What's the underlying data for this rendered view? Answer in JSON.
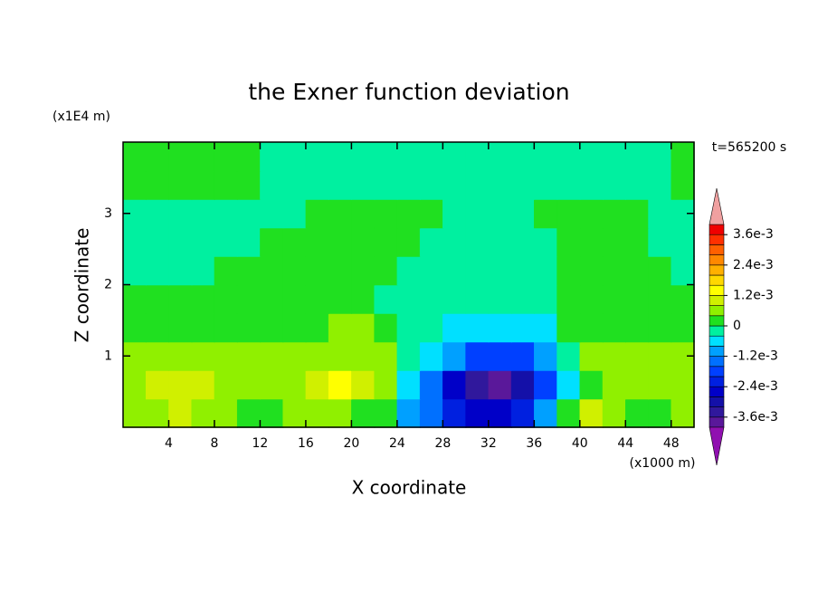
{
  "chart_data": {
    "type": "contour",
    "title": "the Exner function deviation",
    "xlabel": "X coordinate",
    "ylabel": "Z coordinate",
    "x_unit": "(x1000 m)",
    "y_unit": "(x1E4 m)",
    "annotation": "t=565200 s",
    "xlim": [
      0,
      50
    ],
    "ylim": [
      0,
      4
    ],
    "xticks": [
      4,
      8,
      12,
      16,
      20,
      24,
      28,
      32,
      36,
      40,
      44,
      48
    ],
    "yticks": [
      1,
      2,
      3
    ],
    "x": [
      1,
      3,
      5,
      7,
      9,
      11,
      13,
      15,
      17,
      19,
      21,
      23,
      25,
      27,
      29,
      31,
      33,
      35,
      37,
      39,
      41,
      43,
      45,
      47,
      49
    ],
    "y": [
      0.2,
      0.6,
      1.0,
      1.4,
      1.8,
      2.2,
      2.6,
      3.0,
      3.4,
      3.8
    ],
    "z": [
      [
        0.0006,
        0.0006,
        0.001,
        0.0006,
        0.0006,
        0.0002,
        0.0002,
        0.0006,
        0.0006,
        0.0006,
        0.0002,
        0.0002,
        -0.001,
        -0.0014,
        -0.0022,
        -0.0026,
        -0.0026,
        -0.0022,
        -0.001,
        0.0002,
        0.001,
        0.0006,
        0.0002,
        0.0002,
        0.0006
      ],
      [
        0.0006,
        0.001,
        0.001,
        0.001,
        0.0006,
        0.0006,
        0.0006,
        0.0006,
        0.001,
        0.0014,
        0.001,
        0.0006,
        -0.0006,
        -0.0014,
        -0.0026,
        -0.0034,
        -0.0038,
        -0.003,
        -0.0018,
        -0.0006,
        0.0002,
        0.0006,
        0.0006,
        0.0006,
        0.0006
      ],
      [
        0.0006,
        0.0006,
        0.0006,
        0.0006,
        0.0006,
        0.0006,
        0.0006,
        0.0006,
        0.0006,
        0.0006,
        0.0006,
        0.0006,
        -0.0002,
        -0.0006,
        -0.001,
        -0.0018,
        -0.0018,
        -0.0018,
        -0.001,
        -0.0002,
        0.0006,
        0.0006,
        0.0006,
        0.0006,
        0.0006
      ],
      [
        0.0002,
        0.0002,
        0.0002,
        0.0002,
        0.0002,
        0.0002,
        0.0002,
        0.0002,
        0.0002,
        0.0006,
        0.0006,
        0.0002,
        -0.0002,
        -0.0002,
        -0.0006,
        -0.0006,
        -0.0006,
        -0.0006,
        -0.0006,
        0.0002,
        0.0002,
        0.0002,
        0.0002,
        0.0002,
        0.0002
      ],
      [
        0.0002,
        0.0002,
        0.0002,
        0.0002,
        0.0002,
        0.0002,
        0.0002,
        0.0002,
        0.0002,
        0.0002,
        0.0002,
        -0.0002,
        -0.0002,
        -0.0002,
        -0.0002,
        -0.0002,
        -0.0002,
        -0.0002,
        -0.0002,
        0.0002,
        0.0002,
        0.0002,
        0.0002,
        0.0002,
        0.0002
      ],
      [
        -0.0002,
        -0.0002,
        -0.0002,
        -0.0002,
        0.0002,
        0.0002,
        0.0002,
        0.0002,
        0.0002,
        0.0002,
        0.0002,
        0.0002,
        -0.0002,
        -0.0002,
        -0.0002,
        -0.0002,
        -0.0002,
        -0.0002,
        -0.0002,
        0.0002,
        0.0002,
        0.0002,
        0.0002,
        0.0002,
        -0.0002
      ],
      [
        -0.0002,
        -0.0002,
        -0.0002,
        -0.0002,
        -0.0002,
        -0.0002,
        0.0002,
        0.0002,
        0.0002,
        0.0002,
        0.0002,
        0.0002,
        0.0002,
        -0.0002,
        -0.0002,
        -0.0002,
        -0.0002,
        -0.0002,
        -0.0002,
        0.0002,
        0.0002,
        0.0002,
        0.0002,
        -0.0002,
        -0.0002
      ],
      [
        -0.0002,
        -0.0002,
        -0.0002,
        -0.0002,
        -0.0002,
        -0.0002,
        -0.0002,
        -0.0002,
        0.0002,
        0.0002,
        0.0002,
        0.0002,
        0.0002,
        0.0002,
        -0.0002,
        -0.0002,
        -0.0002,
        -0.0002,
        0.0002,
        0.0002,
        0.0002,
        0.0002,
        0.0002,
        -0.0002,
        -0.0002
      ],
      [
        0.0002,
        0.0002,
        0.0002,
        0.0002,
        0.0002,
        0.0002,
        -0.0002,
        -0.0002,
        -0.0002,
        -0.0002,
        -0.0002,
        -0.0002,
        -0.0002,
        -0.0002,
        -0.0002,
        -0.0002,
        -0.0002,
        -0.0002,
        -0.0002,
        -0.0002,
        -0.0002,
        -0.0002,
        -0.0002,
        -0.0002,
        0.0002
      ],
      [
        0.0002,
        0.0002,
        0.0002,
        0.0002,
        0.0002,
        0.0002,
        -0.0002,
        -0.0002,
        -0.0002,
        -0.0002,
        -0.0002,
        -0.0002,
        -0.0002,
        -0.0002,
        -0.0002,
        -0.0002,
        -0.0002,
        -0.0002,
        -0.0002,
        -0.0002,
        -0.0002,
        -0.0002,
        -0.0002,
        -0.0002,
        0.0002
      ]
    ],
    "levels": [
      -0.004,
      -0.0036,
      -0.0032,
      -0.0028,
      -0.0024,
      -0.002,
      -0.0016,
      -0.0012,
      -0.0008,
      -0.0004,
      0,
      0.0004,
      0.0008,
      0.0012,
      0.0016,
      0.002,
      0.0024,
      0.0028,
      0.0032,
      0.0036,
      0.004
    ],
    "colors": [
      "#5a189a",
      "#30189c",
      "#1410a8",
      "#0000c8",
      "#0020e0",
      "#0040ff",
      "#0070ff",
      "#00a0ff",
      "#00e0ff",
      "#00f0a0",
      "#20e020",
      "#90f000",
      "#d0f000",
      "#ffff00",
      "#ffd800",
      "#ffb000",
      "#ff8800",
      "#ff6000",
      "#ff3000",
      "#f00000"
    ],
    "extend_colors": [
      "#9010b0",
      "#f0a0a0"
    ],
    "colorbar_ticks": [
      {
        "value": 0.0036,
        "label": "3.6e-3"
      },
      {
        "value": 0.0024,
        "label": "2.4e-3"
      },
      {
        "value": 0.0012,
        "label": "1.2e-3"
      },
      {
        "value": 0,
        "label": "0"
      },
      {
        "value": -0.0012,
        "label": "-1.2e-3"
      },
      {
        "value": -0.0024,
        "label": "-2.4e-3"
      },
      {
        "value": -0.0036,
        "label": "-3.6e-3"
      }
    ]
  }
}
